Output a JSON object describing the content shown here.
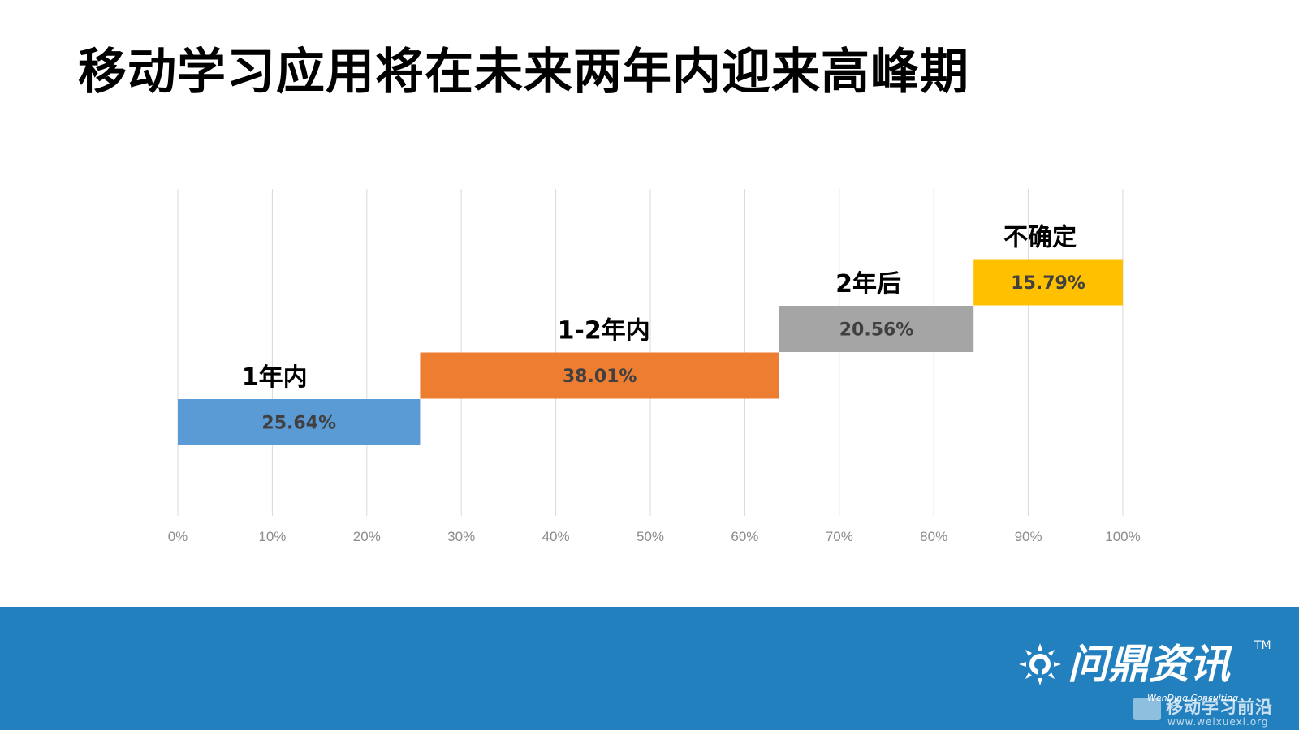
{
  "slide": {
    "title": "移动学习应用将在未来两年内迎来高峰期"
  },
  "chart_data": {
    "type": "bar",
    "subtype": "waterfall-horizontal",
    "categories": [
      "1年内",
      "1-2年内",
      "2年后",
      "不确定"
    ],
    "values": [
      25.64,
      38.01,
      20.56,
      15.79
    ],
    "value_labels": [
      "25.64%",
      "38.01%",
      "20.56%",
      "15.79%"
    ],
    "colors": [
      "#5b9bd5",
      "#ed7d31",
      "#a5a5a5",
      "#ffc000"
    ],
    "xlim": [
      0,
      100
    ],
    "xticks": [
      "0%",
      "10%",
      "20%",
      "30%",
      "40%",
      "50%",
      "60%",
      "70%",
      "80%",
      "90%",
      "100%"
    ],
    "grid": true,
    "unit": "%"
  },
  "footer": {
    "brand_cn": "问鼎资讯",
    "brand_tm": "TM",
    "brand_en": "WenDing Consulting",
    "watermark_cn": "移动学习前沿",
    "watermark_url": "www.weixuexi.org"
  }
}
